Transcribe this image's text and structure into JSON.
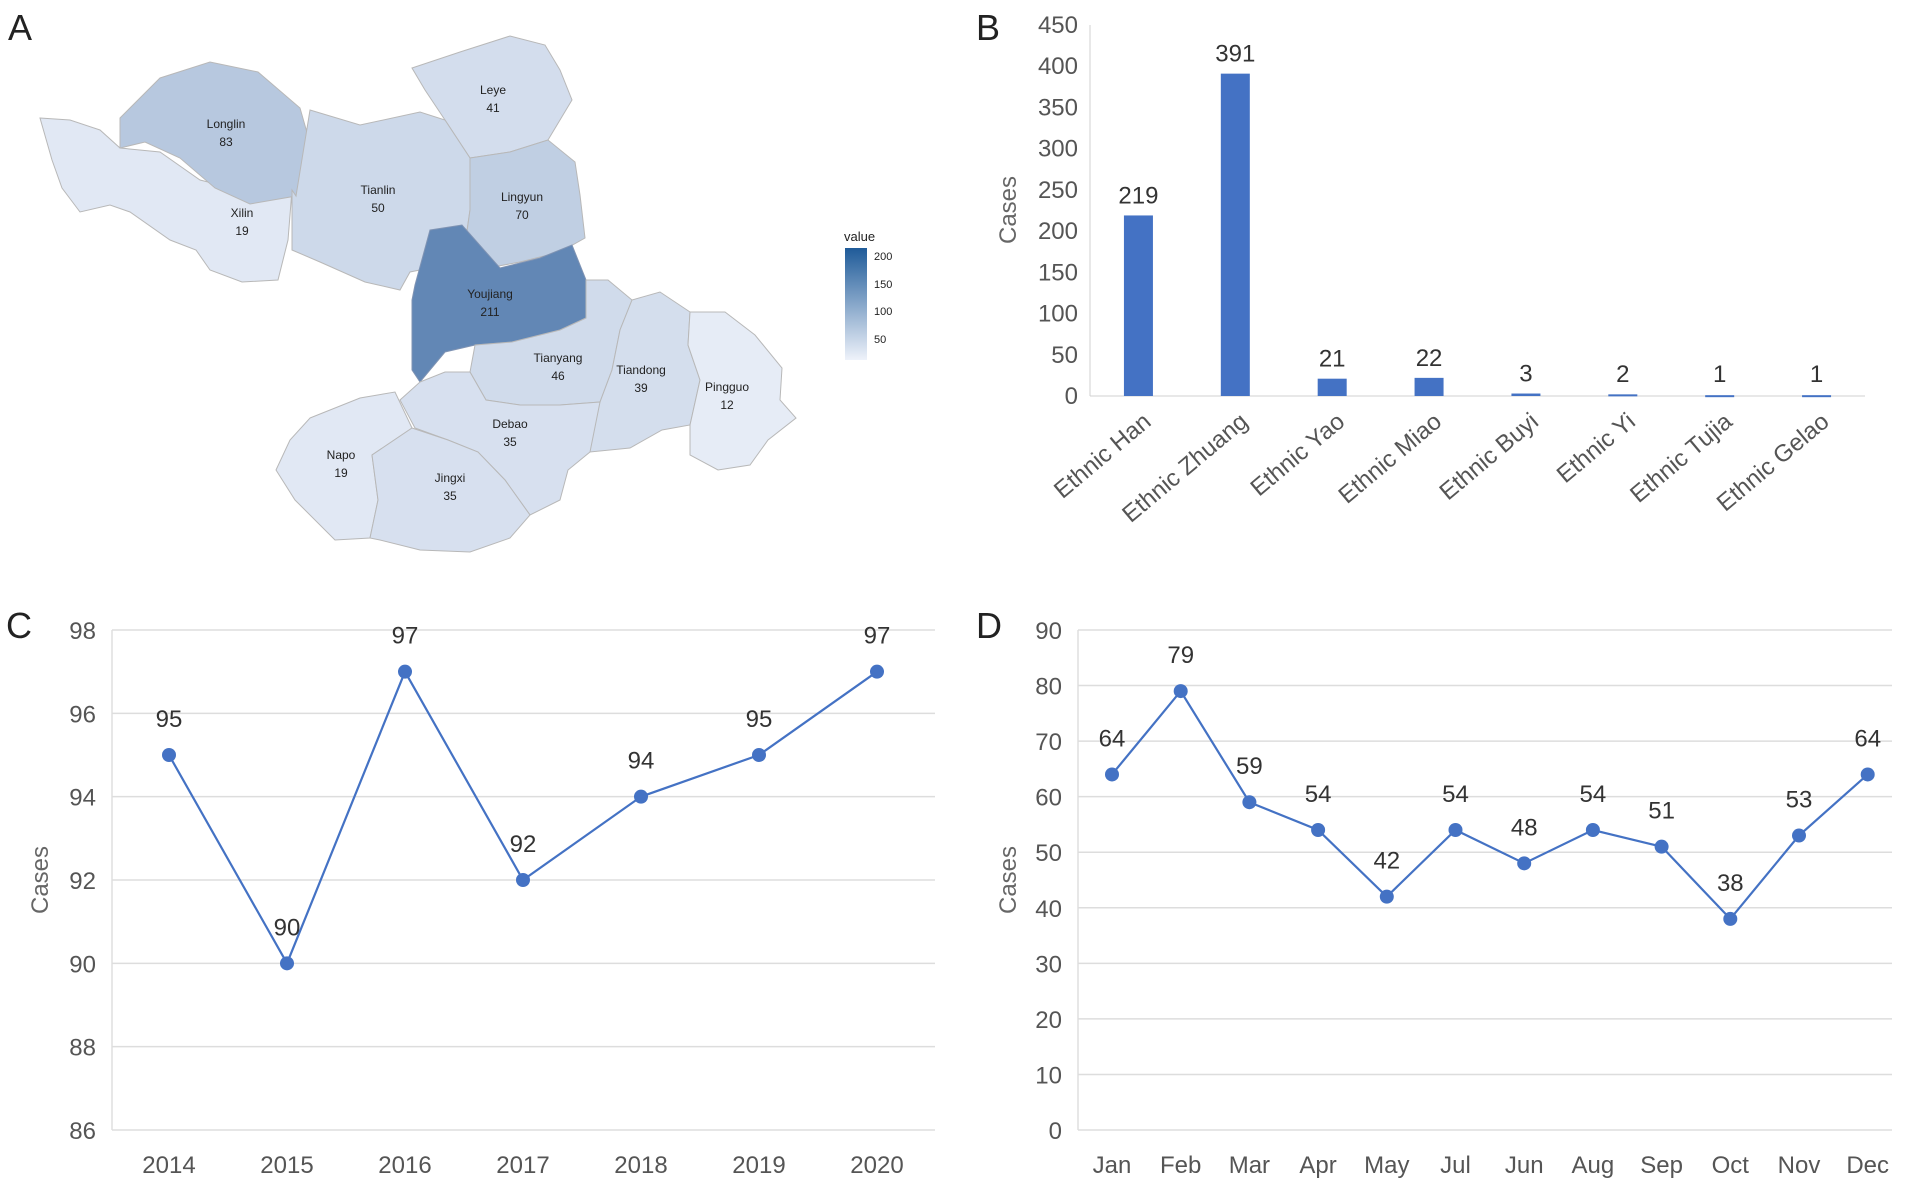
{
  "panels": {
    "a": "A",
    "b": "B",
    "c": "C",
    "d": "D"
  },
  "map": {
    "legend_title": "value",
    "legend_ticks": [
      "200",
      "150",
      "100",
      "50"
    ],
    "scale_max": 211,
    "color_low": "#eef2fa",
    "color_high": "#2c5e9a",
    "regions": [
      {
        "name": "Longlin",
        "value": 83
      },
      {
        "name": "Leye",
        "value": 41
      },
      {
        "name": "Tianlin",
        "value": 50
      },
      {
        "name": "Lingyun",
        "value": 70
      },
      {
        "name": "Xilin",
        "value": 19
      },
      {
        "name": "Youjiang",
        "value": 211
      },
      {
        "name": "Tianyang",
        "value": 46
      },
      {
        "name": "Tiandong",
        "value": 39
      },
      {
        "name": "Pingguo",
        "value": 12
      },
      {
        "name": "Napo",
        "value": 19
      },
      {
        "name": "Debao",
        "value": 35
      },
      {
        "name": "Jingxi",
        "value": 35
      }
    ]
  },
  "chart_data": [
    {
      "panel": "B",
      "type": "bar",
      "title": "",
      "categories": [
        "Ethnic Han",
        "Ethnic Zhuang",
        "Ethnic Yao",
        "Ethnic Miao",
        "Ethnic Buyi",
        "Ethnic Yi",
        "Ethnic Tujia",
        "Ethnic Gelao"
      ],
      "values": [
        219,
        391,
        21,
        22,
        3,
        2,
        1,
        1
      ],
      "xlabel": "",
      "ylabel": "Cases",
      "ylim": [
        0,
        450
      ],
      "yticks": [
        0,
        50,
        100,
        150,
        200,
        250,
        300,
        350,
        400,
        450
      ],
      "color": "#4472c4"
    },
    {
      "panel": "C",
      "type": "line",
      "title": "",
      "categories": [
        "2014",
        "2015",
        "2016",
        "2017",
        "2018",
        "2019",
        "2020"
      ],
      "values": [
        95,
        90,
        97,
        92,
        94,
        95,
        97
      ],
      "xlabel": "",
      "ylabel": "Cases",
      "ylim": [
        86,
        98
      ],
      "yticks": [
        86,
        88,
        90,
        92,
        94,
        96,
        98
      ],
      "grid": true,
      "color": "#4472c4"
    },
    {
      "panel": "D",
      "type": "line",
      "title": "",
      "categories": [
        "Jan",
        "Feb",
        "Mar",
        "Apr",
        "May",
        "Jul",
        "Jun",
        "Aug",
        "Sep",
        "Oct",
        "Nov",
        "Dec"
      ],
      "values": [
        64,
        79,
        59,
        54,
        42,
        54,
        48,
        54,
        51,
        38,
        53,
        64
      ],
      "xlabel": "",
      "ylabel": "Cases",
      "ylim": [
        0,
        90
      ],
      "yticks": [
        0,
        10,
        20,
        30,
        40,
        50,
        60,
        70,
        80,
        90
      ],
      "grid": true,
      "color": "#4472c4"
    }
  ]
}
